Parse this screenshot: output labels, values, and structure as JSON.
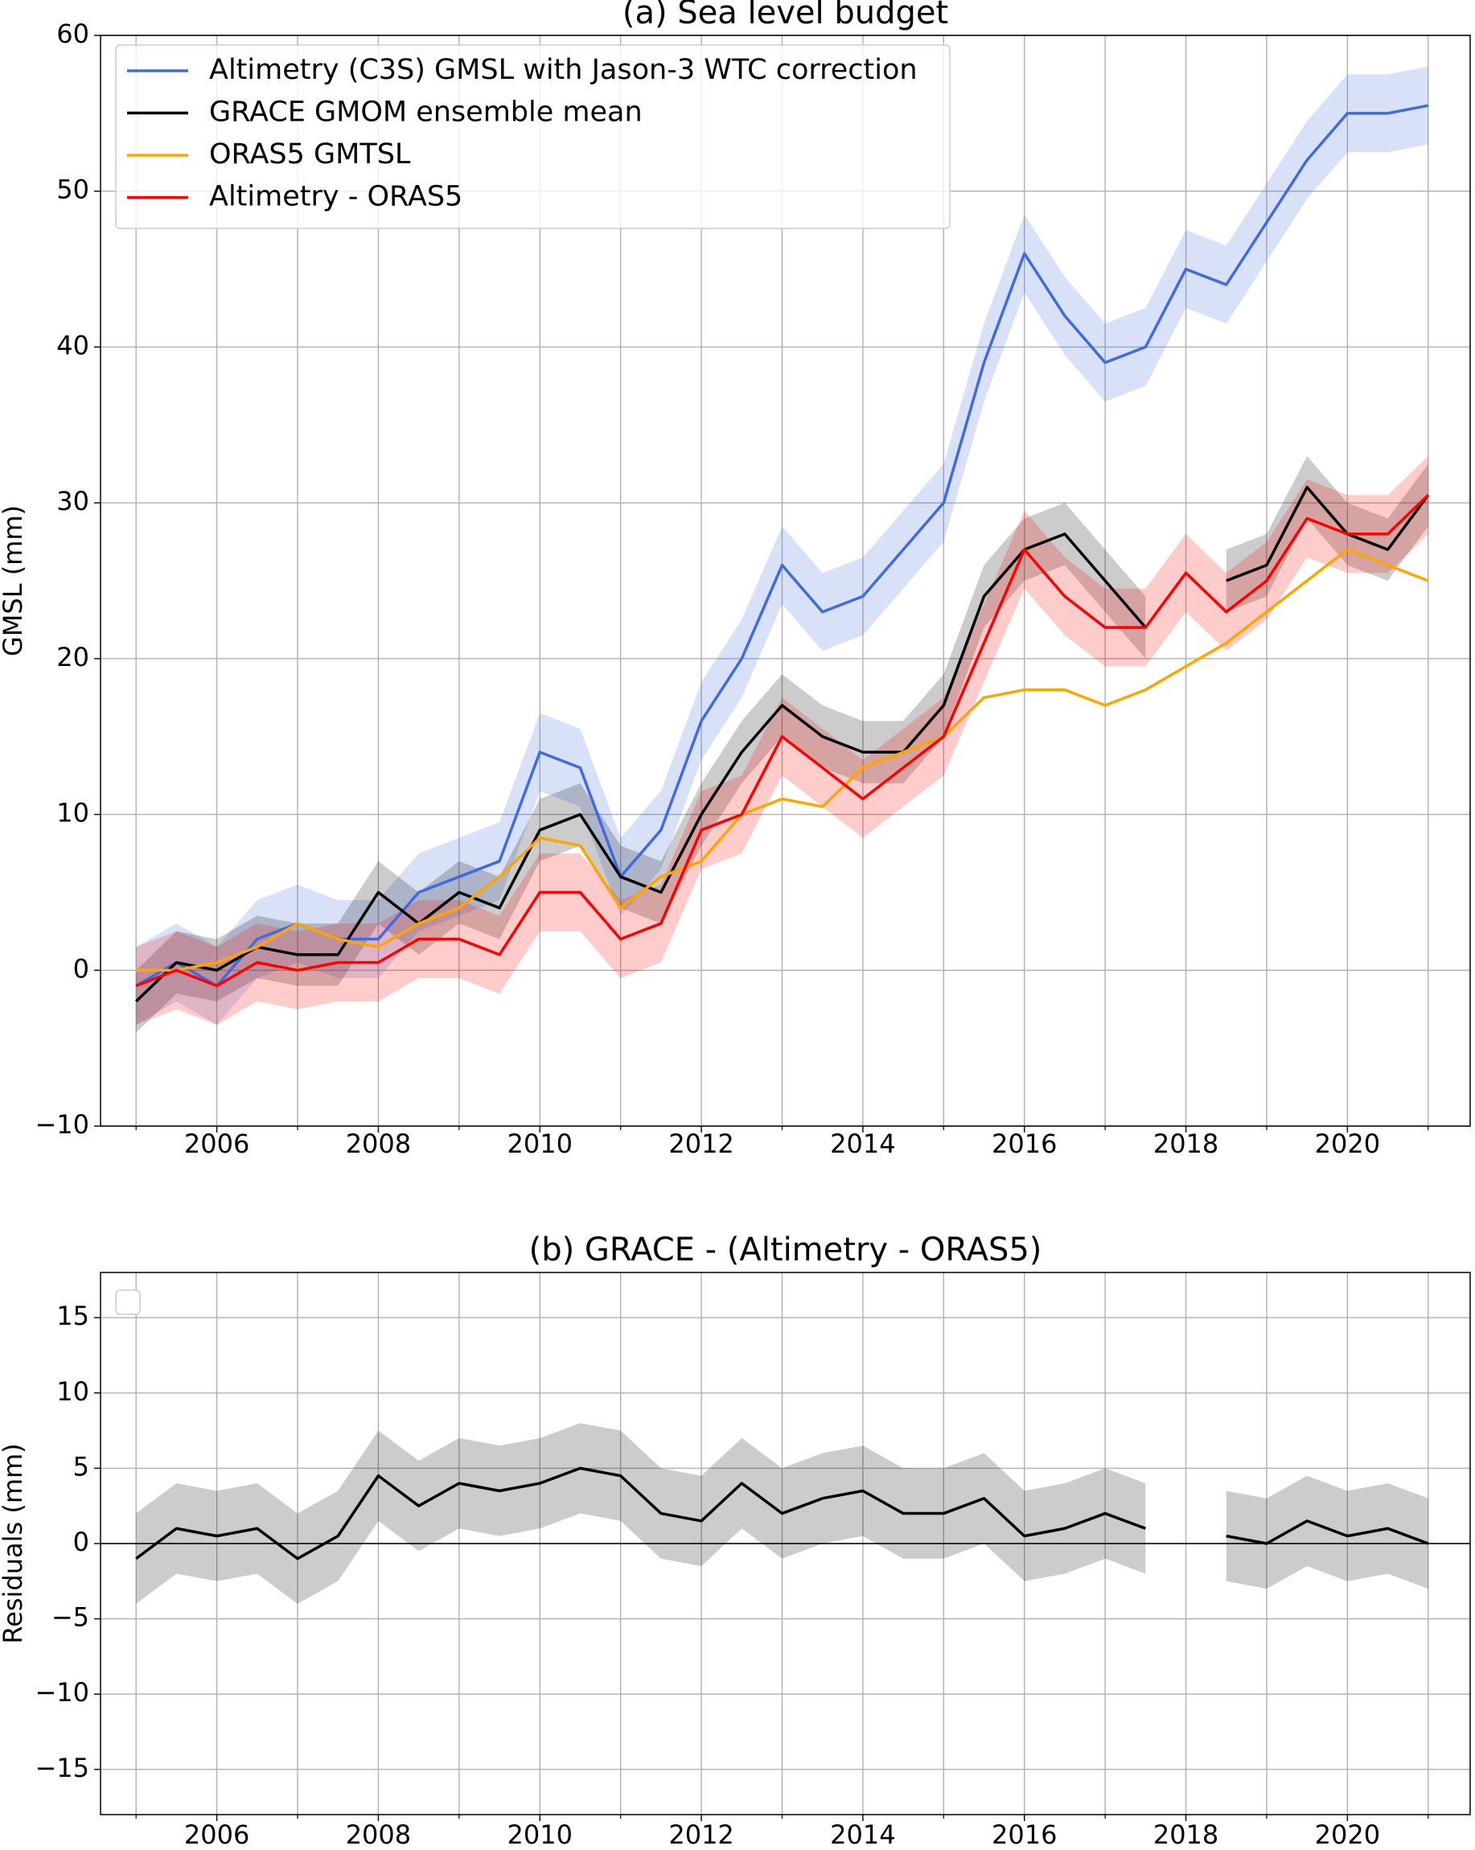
{
  "chart_data": [
    {
      "type": "line",
      "title": "(a) Sea level budget",
      "y_label": "GMSL (mm)",
      "x": [
        2005.0,
        2005.5,
        2006.0,
        2006.5,
        2007.0,
        2007.5,
        2008.0,
        2008.5,
        2009.0,
        2009.5,
        2010.0,
        2010.5,
        2011.0,
        2011.5,
        2012.0,
        2012.5,
        2013.0,
        2013.5,
        2014.0,
        2014.5,
        2015.0,
        2015.5,
        2016.0,
        2016.5,
        2017.0,
        2017.5,
        2018.0,
        2018.5,
        2019.0,
        2019.5,
        2020.0,
        2020.5,
        2021.0
      ],
      "series": [
        {
          "name": "Altimetry (C3S) GMSL with Jason-3 WTC correction",
          "color": "#4169e1",
          "values": [
            -1,
            0.5,
            -1,
            2,
            3,
            2,
            2,
            5,
            6,
            7,
            14,
            13,
            6,
            9,
            16,
            20,
            26,
            23,
            24,
            27,
            30,
            39,
            46,
            42,
            39,
            40,
            45,
            44,
            48,
            52,
            55,
            55,
            55.5
          ],
          "errors": [
            2.5,
            2.5,
            2.5,
            2.5,
            2.5,
            2.5,
            2.5,
            2.5,
            2.5,
            2.5,
            2.5,
            2.5,
            2.5,
            2.5,
            2.5,
            2.5,
            2.5,
            2.5,
            2.5,
            2.5,
            2.5,
            2.5,
            2.5,
            2.5,
            2.5,
            2.5,
            2.5,
            2.5,
            2.5,
            2.5,
            2.5,
            2.5,
            2.5
          ]
        },
        {
          "name": "GRACE GMOM ensemble mean",
          "color": "#000000",
          "values": [
            -2,
            0.5,
            0,
            1.5,
            1,
            1,
            5,
            3,
            5,
            4,
            9,
            10,
            6,
            5,
            10,
            14,
            17,
            15,
            14,
            14,
            17,
            24,
            27,
            28,
            25,
            22,
            null,
            25,
            26,
            31,
            28,
            27,
            30.5
          ],
          "errors": [
            2,
            2,
            2,
            2,
            2,
            2,
            2,
            2,
            2,
            2,
            2,
            2,
            2,
            2,
            2,
            2,
            2,
            2,
            2,
            2,
            2,
            2,
            2,
            2,
            2,
            2,
            null,
            2,
            2,
            2,
            2,
            2,
            2
          ]
        },
        {
          "name": "ORAS5 GMTSL",
          "color": "#ffa500",
          "values": [
            0,
            0,
            0.5,
            1.5,
            3,
            2,
            1.5,
            3,
            4,
            6,
            8.5,
            8,
            4,
            6,
            7,
            10,
            11,
            10.5,
            13,
            14,
            15,
            17.5,
            18,
            18,
            17,
            18,
            19.5,
            21,
            23,
            25,
            27,
            26,
            25
          ]
        },
        {
          "name": "Altimetry - ORAS5",
          "color": "#ff0000",
          "values": [
            -1,
            0,
            -1,
            0.5,
            0,
            0.5,
            0.5,
            2,
            2,
            1,
            5,
            5,
            2,
            3,
            9,
            10,
            15,
            13,
            11,
            13,
            15,
            21,
            27,
            24,
            22,
            22,
            25.5,
            23,
            25,
            29,
            28,
            28,
            30.5
          ],
          "errors": [
            2.5,
            2.5,
            2.5,
            2.5,
            2.5,
            2.5,
            2.5,
            2.5,
            2.5,
            2.5,
            2.5,
            2.5,
            2.5,
            2.5,
            2.5,
            2.5,
            2.5,
            2.5,
            2.5,
            2.5,
            2.5,
            2.5,
            2.5,
            2.5,
            2.5,
            2.5,
            2.5,
            2.5,
            2.5,
            2.5,
            2.5,
            2.5,
            2.5
          ]
        }
      ],
      "xlim": [
        2004.56,
        2021.52
      ],
      "ylim": [
        -10,
        60
      ],
      "xticks": [
        2006,
        2008,
        2010,
        2012,
        2014,
        2016,
        2018,
        2020
      ],
      "xminorticks": [
        2005,
        2007,
        2009,
        2011,
        2013,
        2015,
        2017,
        2019,
        2021
      ],
      "yticks": [
        {
          "value": -10,
          "label": "−10"
        },
        0,
        10,
        20,
        30,
        40,
        50,
        60
      ],
      "grid": true,
      "legend": "upper left"
    },
    {
      "type": "line",
      "title": "(b) GRACE - (Altimetry - ORAS5)",
      "y_label": "Residuals (mm)",
      "x": [
        2005.0,
        2005.5,
        2006.0,
        2006.5,
        2007.0,
        2007.5,
        2008.0,
        2008.5,
        2009.0,
        2009.5,
        2010.0,
        2010.5,
        2011.0,
        2011.5,
        2012.0,
        2012.5,
        2013.0,
        2013.5,
        2014.0,
        2014.5,
        2015.0,
        2015.5,
        2016.0,
        2016.5,
        2017.0,
        2017.5,
        2018.0,
        2018.5,
        2019.0,
        2019.5,
        2020.0,
        2020.5,
        2021.0
      ],
      "series": [
        {
          "color": "#000000",
          "values": [
            -1,
            1,
            0.5,
            1,
            -1,
            0.5,
            4.5,
            2.5,
            4,
            3.5,
            4,
            5,
            4.5,
            2,
            1.5,
            4,
            2,
            3,
            3.5,
            2,
            2,
            3,
            0.5,
            1,
            2,
            1,
            null,
            0.5,
            0,
            1.5,
            0.5,
            1,
            0
          ],
          "errors": [
            3,
            3,
            3,
            3,
            3,
            3,
            3,
            3,
            3,
            3,
            3,
            3,
            3,
            3,
            3,
            3,
            3,
            3,
            3,
            3,
            3,
            3,
            3,
            3,
            3,
            3,
            null,
            3,
            3,
            3,
            3,
            3,
            3
          ]
        }
      ],
      "zero_line": 0,
      "xlim": [
        2004.56,
        2021.52
      ],
      "ylim": [
        -18,
        18
      ],
      "xticks": [
        2006,
        2008,
        2010,
        2012,
        2014,
        2016,
        2018,
        2020
      ],
      "xminorticks": [
        2005,
        2007,
        2009,
        2011,
        2013,
        2015,
        2017,
        2019,
        2021
      ],
      "yticks": [
        {
          "value": -15,
          "label": "−15"
        },
        {
          "value": -10,
          "label": "−10"
        },
        {
          "value": -5,
          "label": "−5"
        },
        0,
        5,
        10,
        15
      ],
      "grid": true,
      "legend": "upper left"
    }
  ]
}
